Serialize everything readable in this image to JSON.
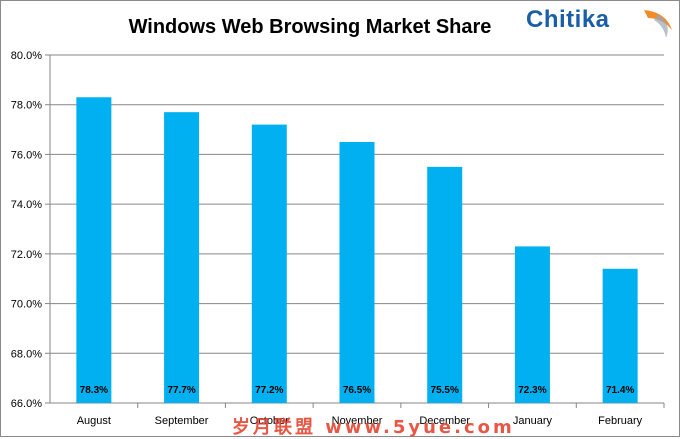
{
  "chart_data": {
    "type": "bar",
    "title": "Windows Web Browsing Market Share",
    "categories": [
      "August",
      "September",
      "October",
      "November",
      "December",
      "January",
      "February"
    ],
    "values": [
      78.3,
      77.7,
      77.2,
      76.5,
      75.5,
      72.3,
      71.4
    ],
    "data_labels": [
      "78.3%",
      "77.7%",
      "77.2%",
      "76.5%",
      "75.5%",
      "72.3%",
      "71.4%"
    ],
    "yticks": [
      "66.0%",
      "68.0%",
      "70.0%",
      "72.0%",
      "74.0%",
      "76.0%",
      "78.0%",
      "80.0%"
    ],
    "ytick_values": [
      66,
      68,
      70,
      72,
      74,
      76,
      78,
      80
    ],
    "ylim": [
      66,
      80
    ],
    "xlabel": "",
    "ylabel": "",
    "grid": true,
    "legend": "none",
    "bar_color": "#00b0f0",
    "grid_color": "#868686"
  },
  "logo": {
    "text": "Chitika",
    "color": "#1a5ea8",
    "swoosh_color": "#f28c28"
  },
  "watermark": {
    "text": "岁月联盟 www.5yue.com",
    "color": "#e43a25"
  }
}
